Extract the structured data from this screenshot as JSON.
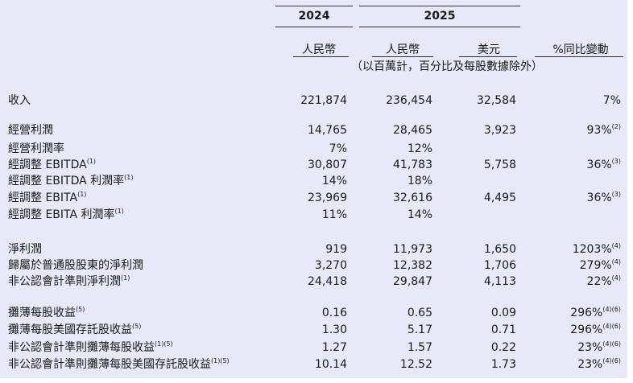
{
  "header": {
    "year_2024": "2024",
    "year_2025": "2025",
    "col_rmb_2024": "人民幣",
    "col_rmb_2025": "人民幣",
    "col_usd": "美元",
    "col_yoy": "%同比變動",
    "note": "（以百萬計，百分比及每股數據除外）"
  },
  "rows": [
    {
      "label": "收入",
      "v1": "221,874",
      "v2": "236,454",
      "v3": "32,584",
      "v4": "7%",
      "sup_label": "",
      "sup_v4": ""
    },
    {
      "label": "經營利潤",
      "v1": "14,765",
      "v2": "28,465",
      "v3": "3,923",
      "v4": "93%",
      "sup_label": "",
      "sup_v4": "(2)"
    },
    {
      "label": "經營利潤率",
      "v1": "7%",
      "v2": "12%",
      "v3": "",
      "v4": "",
      "sup_label": "",
      "sup_v4": ""
    },
    {
      "label": "經調整 EBITDA",
      "v1": "30,807",
      "v2": "41,783",
      "v3": "5,758",
      "v4": "36%",
      "sup_label": "(1)",
      "sup_v4": "(3)"
    },
    {
      "label": "經調整 EBITDA 利潤率",
      "v1": "14%",
      "v2": "18%",
      "v3": "",
      "v4": "",
      "sup_label": "(1)",
      "sup_v4": ""
    },
    {
      "label": "經調整 EBITA",
      "v1": "23,969",
      "v2": "32,616",
      "v3": "4,495",
      "v4": "36%",
      "sup_label": "(1)",
      "sup_v4": "(3)"
    },
    {
      "label": "經調整 EBITA 利潤率",
      "v1": "11%",
      "v2": "14%",
      "v3": "",
      "v4": "",
      "sup_label": "(1)",
      "sup_v4": ""
    },
    {
      "label": "淨利潤",
      "v1": "919",
      "v2": "11,973",
      "v3": "1,650",
      "v4": "1203%",
      "sup_label": "",
      "sup_v4": "(4)"
    },
    {
      "label": "歸屬於普通股股東的淨利潤",
      "v1": "3,270",
      "v2": "12,382",
      "v3": "1,706",
      "v4": "279%",
      "sup_label": "",
      "sup_v4": "(4)"
    },
    {
      "label": "非公認會計準則淨利潤",
      "v1": "24,418",
      "v2": "29,847",
      "v3": "4,113",
      "v4": "22%",
      "sup_label": "(1)",
      "sup_v4": "(4)"
    },
    {
      "label": "攤薄每股收益",
      "v1": "0.16",
      "v2": "0.65",
      "v3": "0.09",
      "v4": "296%",
      "sup_label": "(5)",
      "sup_v4": "(4)(6)"
    },
    {
      "label": "攤薄每股美國存託股收益",
      "v1": "1.30",
      "v2": "5.17",
      "v3": "0.71",
      "v4": "296%",
      "sup_label": "(5)",
      "sup_v4": "(4)(6)"
    },
    {
      "label": "非公認會計準則攤薄每股收益",
      "v1": "1.27",
      "v2": "1.57",
      "v3": "0.22",
      "v4": "23%",
      "sup_label": "(1)(5)",
      "sup_v4": "(4)(6)"
    },
    {
      "label": "非公認會計準則攤薄每股美國存託股收益",
      "v1": "10.14",
      "v2": "12.52",
      "v3": "1.73",
      "v4": "23%",
      "sup_label": "(1)(5)",
      "sup_v4": "(4)(6)"
    }
  ]
}
